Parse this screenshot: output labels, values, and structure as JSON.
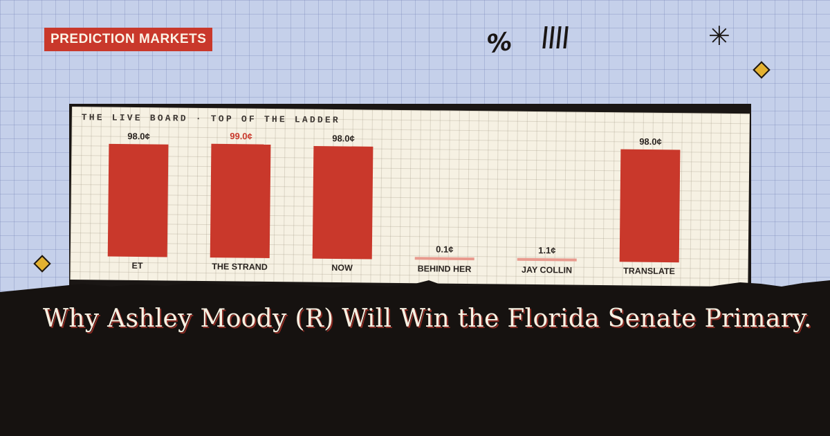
{
  "badge": {
    "label": "PREDICTION MARKETS"
  },
  "decorations": {
    "percent_glyph": "%",
    "star_glyph": "✳",
    "icons": [
      "percent-icon",
      "tally-marks-icon",
      "asterisk-icon",
      "diamond-icon"
    ]
  },
  "board": {
    "title": "THE LIVE BOARD · TOP OF THE LADDER"
  },
  "chart_data": {
    "type": "bar",
    "title": "THE LIVE BOARD · TOP OF THE LADDER",
    "categories": [
      "ET",
      "THE STRAND",
      "NOW",
      "BEHIND HER",
      "JAY COLLIN",
      "TRANSLATE"
    ],
    "values": [
      98.0,
      99.0,
      98.0,
      0.1,
      1.1,
      98.0
    ],
    "value_labels": [
      "98.0¢",
      "99.0¢",
      "98.0¢",
      "0.1¢",
      "1.1¢",
      "98.0¢"
    ],
    "highlight_index": 1,
    "ylim": [
      0,
      100
    ],
    "grid": true,
    "colors": {
      "bar": "#c9382b",
      "small_bar": "#e89a8e",
      "highlight_label": "#c9382b",
      "label": "#2a2420"
    }
  },
  "headline": {
    "text": "Why Ashley Moody (R) Will Win the Florida Senate Primary."
  }
}
